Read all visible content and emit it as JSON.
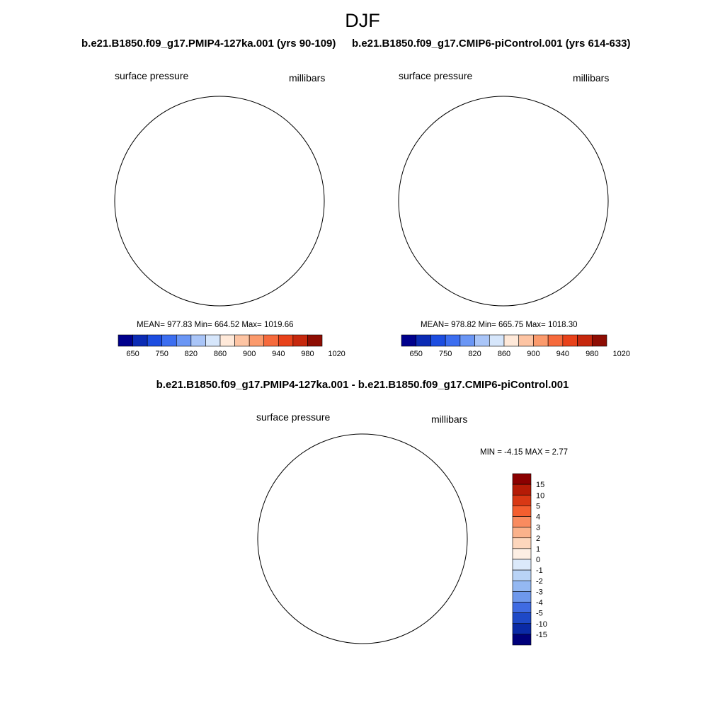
{
  "main_title": "DJF",
  "panels": [
    {
      "title": "b.e21.B1850.f09_g17.PMIP4-127ka.001 (yrs 90-109)",
      "variable": "surface pressure",
      "units": "millibars",
      "stats": "MEAN= 977.83  Min= 664.52  Max= 1019.66",
      "colorbar": {
        "labels": [
          "650",
          "750",
          "820",
          "860",
          "900",
          "940",
          "980",
          "1020"
        ]
      }
    },
    {
      "title": "b.e21.B1850.f09_g17.CMIP6-piControl.001 (yrs 614-633)",
      "variable": "surface pressure",
      "units": "millibars",
      "stats": "MEAN= 978.82  Min= 665.75  Max= 1018.30",
      "colorbar": {
        "labels": [
          "650",
          "750",
          "820",
          "860",
          "900",
          "940",
          "980",
          "1020"
        ]
      }
    }
  ],
  "difference": {
    "title": "b.e21.B1850.f09_g17.PMIP4-127ka.001 - b.e21.B1850.f09_g17.CMIP6-piControl.001",
    "variable": "surface pressure",
    "units": "millibars",
    "stats": "MIN =  -4.15 MAX =   2.77",
    "colorbar": {
      "labels": [
        "15",
        "10",
        "5",
        "4",
        "3",
        "2",
        "1",
        "0",
        "-1",
        "-2",
        "-3",
        "-4",
        "-5",
        "-10",
        "-15"
      ]
    }
  },
  "colors": {
    "abs_scale": [
      "#00008c",
      "#0b2bb4",
      "#1c4de0",
      "#3c6ef0",
      "#6a96f5",
      "#a9c5f8",
      "#d6e6fb",
      "#ffe9d9",
      "#fdc4a3",
      "#fb9a6c",
      "#f66a3c",
      "#e8421a",
      "#c6280d",
      "#8e0d03"
    ],
    "diff_scale": [
      "#8b0000",
      "#b51b06",
      "#d93814",
      "#f45e2f",
      "#f98b5f",
      "#fbb28b",
      "#fdd6bc",
      "#fdefe4",
      "#dbe9fa",
      "#b9d3f6",
      "#94b8f2",
      "#6e98ec",
      "#3f6be2",
      "#1e49c7",
      "#0a2aa6",
      "#00007a"
    ]
  }
}
